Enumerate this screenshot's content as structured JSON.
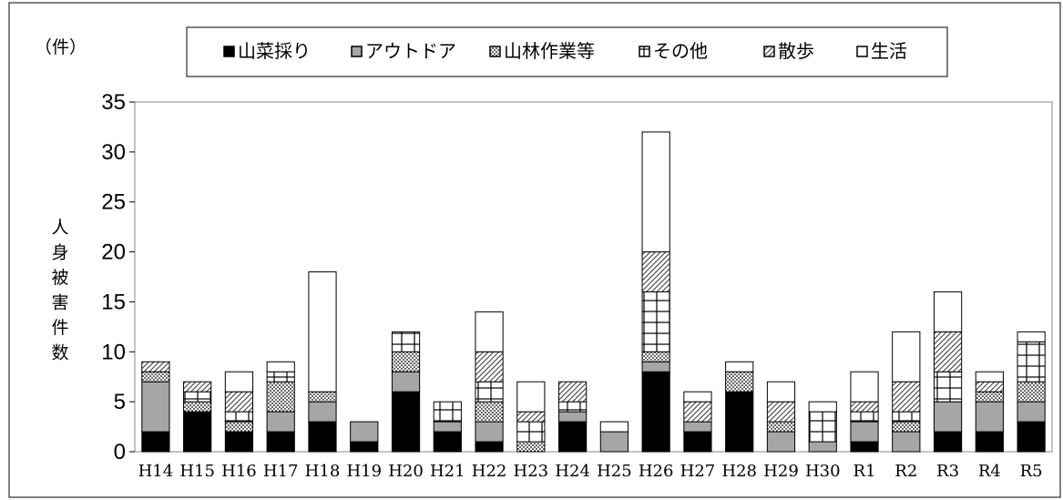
{
  "chart_data": {
    "type": "bar",
    "stacked": true,
    "title": "",
    "unit_label": "（件）",
    "ylabel": "人身被害件数",
    "xlabel": "",
    "ylim": [
      0,
      35
    ],
    "yticks": [
      0,
      5,
      10,
      15,
      20,
      25,
      30,
      35
    ],
    "grid": false,
    "legend_position": "top",
    "categories": [
      "H14",
      "H15",
      "H16",
      "H17",
      "H18",
      "H19",
      "H20",
      "H21",
      "H22",
      "H23",
      "H24",
      "H25",
      "H26",
      "H27",
      "H28",
      "H29",
      "H30",
      "R1",
      "R2",
      "R3",
      "R4",
      "R5"
    ],
    "series": [
      {
        "name": "山菜採り",
        "pattern": "solid-black",
        "values": [
          2,
          4,
          2,
          2,
          3,
          1,
          6,
          2,
          1,
          0,
          3,
          0,
          8,
          2,
          6,
          0,
          0,
          1,
          0,
          2,
          2,
          3
        ]
      },
      {
        "name": "アウトドア",
        "pattern": "solid-gray",
        "values": [
          5,
          0,
          0,
          2,
          2,
          2,
          2,
          1,
          2,
          0,
          1,
          2,
          1,
          1,
          0,
          2,
          1,
          2,
          2,
          3,
          3,
          2
        ]
      },
      {
        "name": "山林作業等",
        "pattern": "dots",
        "values": [
          1,
          1,
          1,
          3,
          1,
          0,
          2,
          0,
          2,
          1,
          0,
          0,
          1,
          0,
          2,
          1,
          0,
          0,
          1,
          0,
          1,
          2
        ]
      },
      {
        "name": "その他",
        "pattern": "grid",
        "values": [
          0,
          1,
          1,
          1,
          0,
          0,
          2,
          2,
          2,
          2,
          1,
          0,
          6,
          0,
          0,
          0,
          3,
          1,
          1,
          3,
          0,
          4
        ]
      },
      {
        "name": "散歩",
        "pattern": "diagonal",
        "values": [
          1,
          1,
          2,
          0,
          0,
          0,
          0,
          0,
          3,
          1,
          2,
          0,
          4,
          2,
          0,
          2,
          0,
          1,
          3,
          4,
          1,
          0
        ]
      },
      {
        "name": "生活",
        "pattern": "blank",
        "values": [
          0,
          0,
          2,
          1,
          12,
          0,
          0,
          0,
          4,
          3,
          0,
          1,
          12,
          1,
          1,
          2,
          1,
          3,
          5,
          4,
          1,
          1
        ]
      }
    ]
  }
}
